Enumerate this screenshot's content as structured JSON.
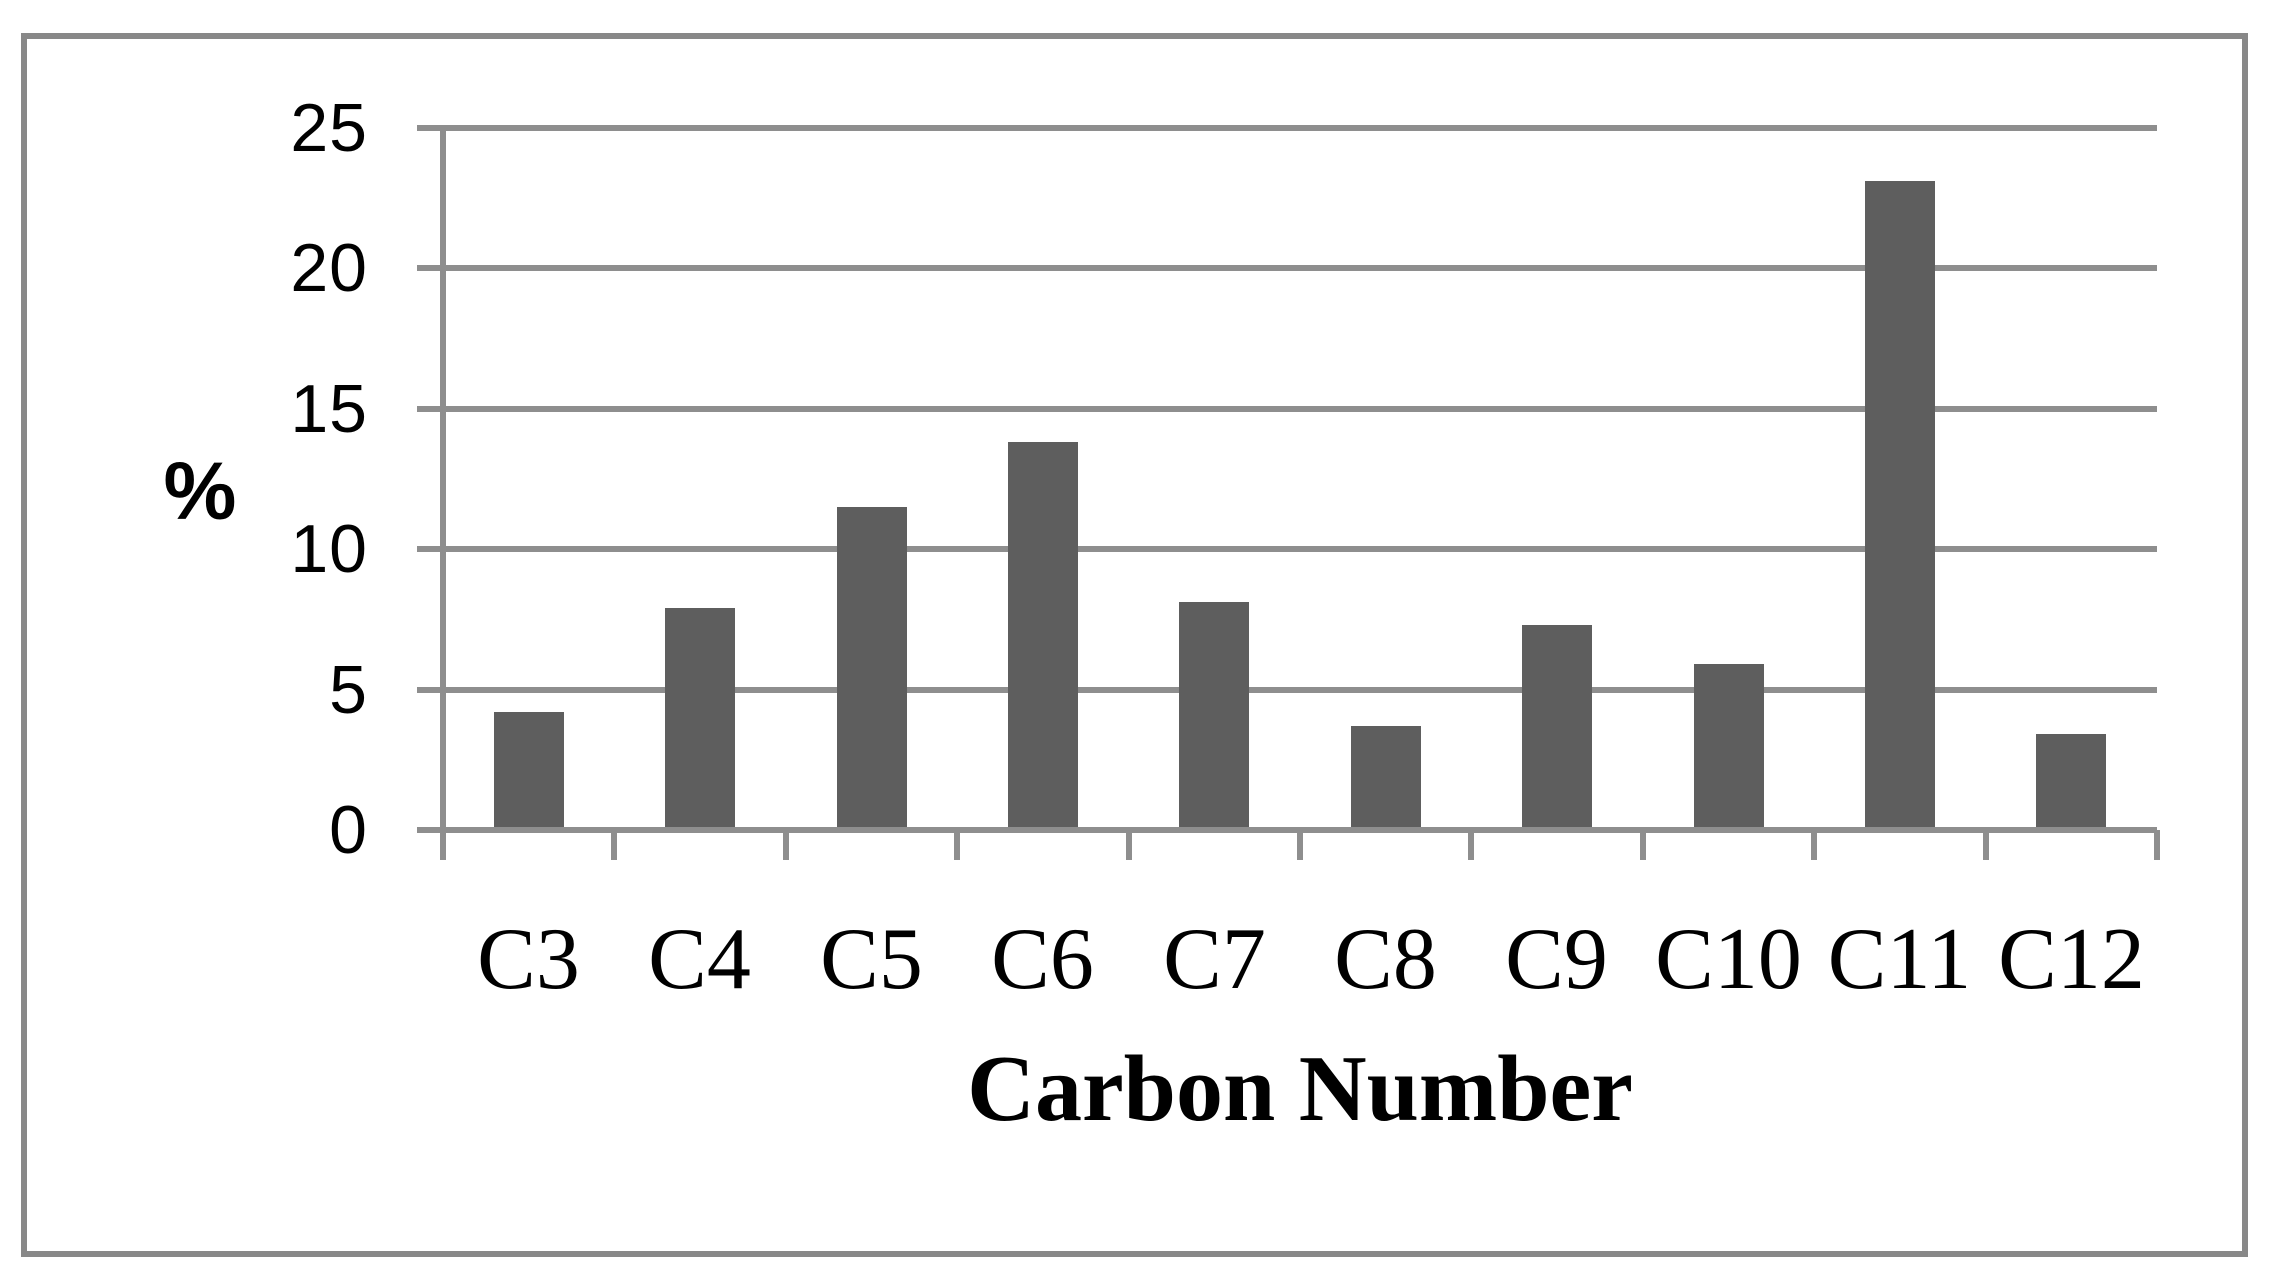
{
  "chart_data": {
    "type": "bar",
    "title": "",
    "categories": [
      "C3",
      "C4",
      "C5",
      "C6",
      "C7",
      "C8",
      "C9",
      "C10",
      "C11",
      "C12"
    ],
    "values": [
      4.2,
      7.9,
      11.5,
      13.8,
      8.1,
      3.7,
      7.3,
      5.9,
      23.1,
      3.4
    ],
    "series_name": "",
    "xlabel": "Carbon Number",
    "ylabel": "%",
    "ylim": [
      0,
      25
    ],
    "y_tick_step": 5,
    "y_ticks": [
      0,
      5,
      10,
      15,
      20,
      25
    ],
    "grid": true,
    "legend_position": "none",
    "colors": {
      "bar": "#5e5e5e",
      "gridline": "#8e8e8e",
      "axis": "#8e8e8e",
      "border": "#888888",
      "text": "#000000",
      "background": "#ffffff"
    }
  }
}
